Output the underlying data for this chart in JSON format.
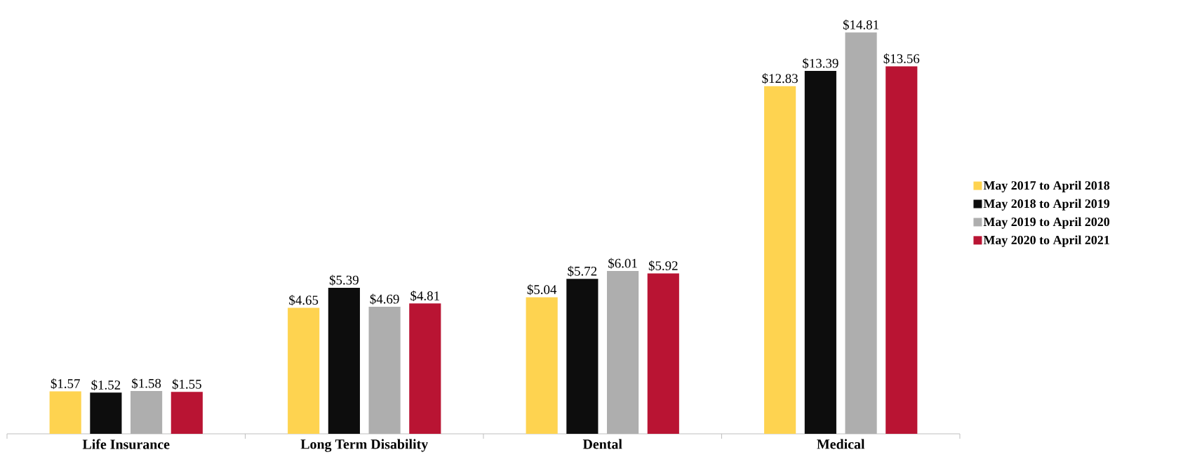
{
  "chart_data": {
    "type": "bar",
    "categories": [
      "Life Insurance",
      "Long Term Disability",
      "Dental",
      "Medical"
    ],
    "series": [
      {
        "name": "May 2017 to April 2018",
        "color": "#fed350",
        "values": [
          1.57,
          4.65,
          5.04,
          12.83
        ],
        "value_labels": [
          "$1.57",
          "$4.65",
          "$5.04",
          "$12.83"
        ]
      },
      {
        "name": "May 2018 to April 2019",
        "color": "#0d0d0d",
        "values": [
          1.52,
          5.39,
          5.72,
          13.39
        ],
        "value_labels": [
          "$1.52",
          "$5.39",
          "$5.72",
          "$13.39"
        ]
      },
      {
        "name": "May 2019 to April 2020",
        "color": "#aeaeae",
        "values": [
          1.58,
          4.69,
          6.01,
          14.81
        ],
        "value_labels": [
          "$1.58",
          "$4.69",
          "$6.01",
          "$14.81"
        ]
      },
      {
        "name": "May 2020 to April 2021",
        "color": "#b91433",
        "values": [
          1.55,
          4.81,
          5.92,
          13.56
        ],
        "value_labels": [
          "$1.55",
          "$4.81",
          "$5.92",
          "$13.56"
        ]
      }
    ],
    "legend": "right"
  }
}
